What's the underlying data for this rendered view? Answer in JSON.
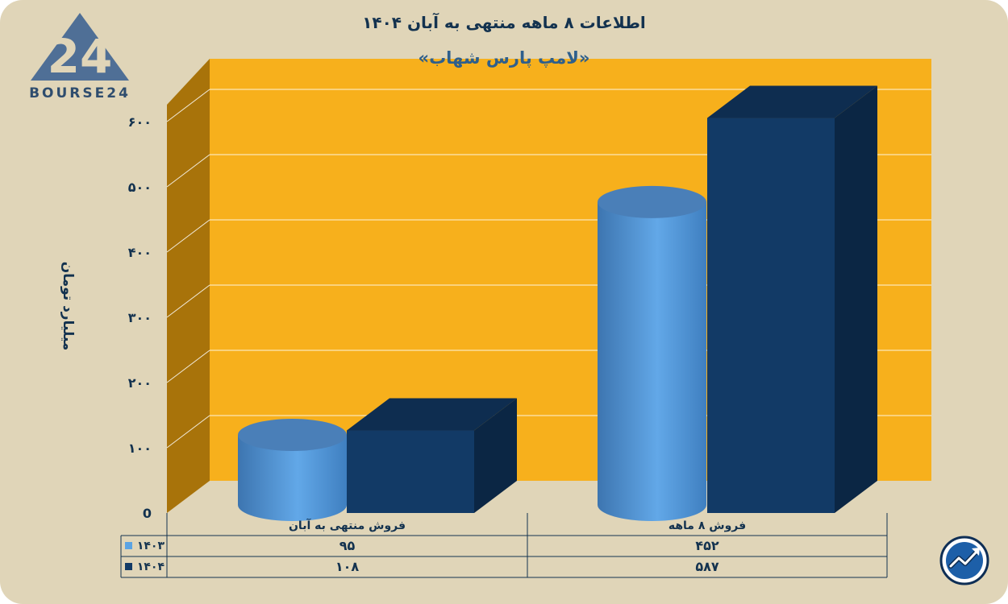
{
  "title": "اطلاعات ۸ ماهه منتهی به آبان ۱۴۰۴",
  "subtitle": "«لامپ پارس شهاب»",
  "logo_text": "BOURSE24",
  "logo_mark": "24",
  "colors": {
    "background": "#e0d5b8",
    "plot_back": "#f7b01c",
    "plot_side": "#a8730a",
    "series_1403": "#5ba3e3",
    "series_1404": "#123a66",
    "text": "#13324f"
  },
  "icons": [
    "bourse24-logo-icon",
    "trend-arrow-badge-icon"
  ],
  "chart_data": {
    "type": "bar",
    "style": "3d-cylinder-and-box",
    "categories": [
      "فروش منتهی به  آبان",
      "فروش ۸  ماهه"
    ],
    "series": [
      {
        "name": "۱۴۰۳",
        "values": [
          95,
          452
        ],
        "value_labels": [
          "۹۵",
          "۴۵۲"
        ],
        "shape": "cylinder",
        "color": "#5ba3e3"
      },
      {
        "name": "۱۴۰۴",
        "values": [
          108,
          587
        ],
        "value_labels": [
          "۱۰۸",
          "۵۸۷"
        ],
        "shape": "box",
        "color": "#123a66"
      }
    ],
    "ylabel": "میلیارد تومان",
    "ylim": [
      0,
      600
    ],
    "yticks": [
      0,
      100,
      200,
      300,
      400,
      500,
      600
    ],
    "ytick_labels": [
      "0",
      "۱۰۰",
      "۲۰۰",
      "۳۰۰",
      "۴۰۰",
      "۵۰۰",
      "۶۰۰"
    ],
    "grid": true,
    "legend": "data-table-below"
  }
}
